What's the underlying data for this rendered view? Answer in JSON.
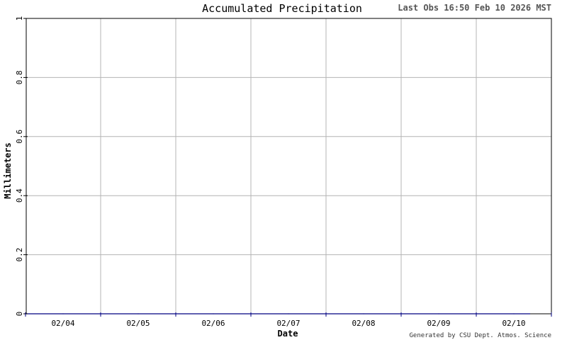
{
  "header": {
    "title": "Accumulated Precipitation",
    "last_obs": "Last Obs 16:50 Feb 10 2026 MST"
  },
  "footer": {
    "credit": "Generated by CSU Dept. Atmos. Science"
  },
  "chart_data": {
    "type": "line",
    "title": "Accumulated Precipitation",
    "xlabel": "Date",
    "ylabel": "Millimeters",
    "categories": [
      "02/04",
      "02/05",
      "02/06",
      "02/07",
      "02/08",
      "02/09",
      "02/10"
    ],
    "ylim": [
      0,
      1
    ],
    "yticks": [
      "0",
      "0.2",
      "0.4",
      "0.6",
      "0.8",
      "1"
    ],
    "grid": true,
    "series": [
      {
        "x": [
          "02/04",
          "02/05",
          "02/06",
          "02/07",
          "02/08",
          "02/09",
          "02/10"
        ],
        "values": [
          0,
          0,
          0,
          0,
          0,
          0,
          0
        ],
        "color": "#000080"
      }
    ]
  }
}
